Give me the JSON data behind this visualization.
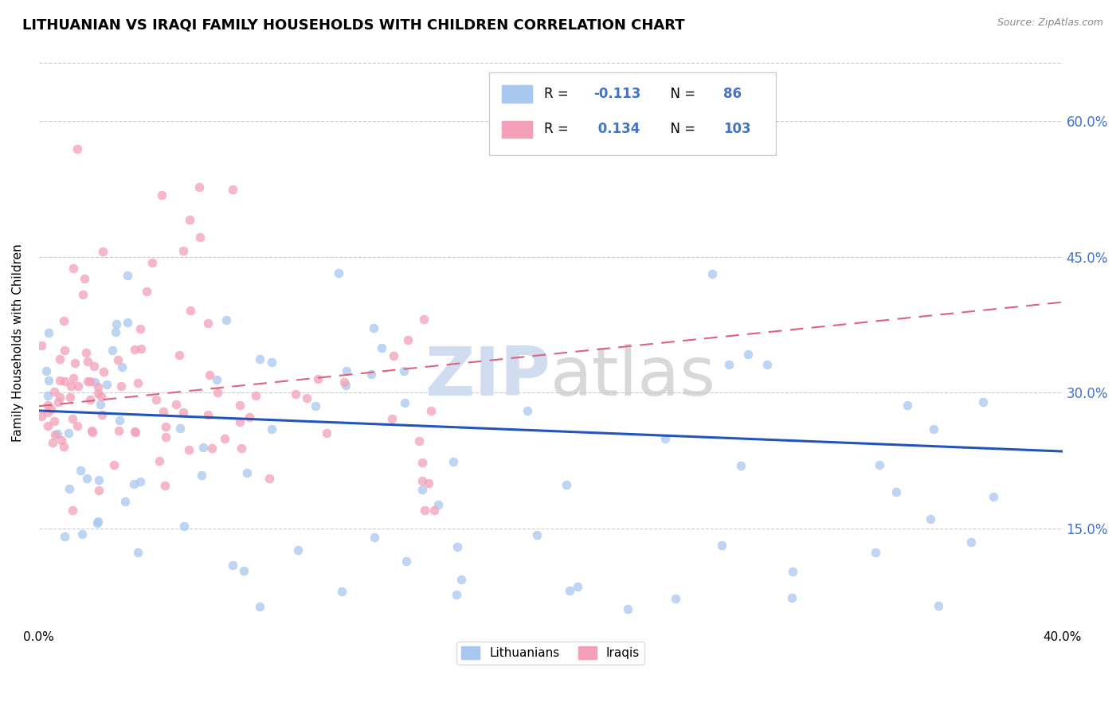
{
  "title": "LITHUANIAN VS IRAQI FAMILY HOUSEHOLDS WITH CHILDREN CORRELATION CHART",
  "source": "Source: ZipAtlas.com",
  "ylabel": "Family Households with Children",
  "xlabel_bottom_left": "0.0%",
  "xlabel_bottom_right": "40.0%",
  "r_lithuanian": -0.113,
  "n_lithuanian": 86,
  "r_iraqi": 0.134,
  "n_iraqi": 103,
  "color_lithuanian": "#a8c8f0",
  "color_iraqi": "#f4a0b8",
  "color_trendline_lithuanian": "#2255bb",
  "color_trendline_iraqi": "#e06080",
  "yticks": [
    "15.0%",
    "30.0%",
    "45.0%",
    "60.0%"
  ],
  "ytick_vals": [
    0.15,
    0.3,
    0.45,
    0.6
  ],
  "xmin": 0.0,
  "xmax": 0.4,
  "ymin": 0.04,
  "ymax": 0.67,
  "watermark": "ZIPatlas",
  "legend_labels": [
    "Lithuanians",
    "Iraqis"
  ],
  "title_fontsize": 13,
  "axis_label_fontsize": 11,
  "tick_color": "#4472c4",
  "grid_color": "#cccccc",
  "trendline_lit_start": 0.28,
  "trendline_lit_end": 0.235,
  "trendline_irq_start": 0.285,
  "trendline_irq_end": 0.4
}
